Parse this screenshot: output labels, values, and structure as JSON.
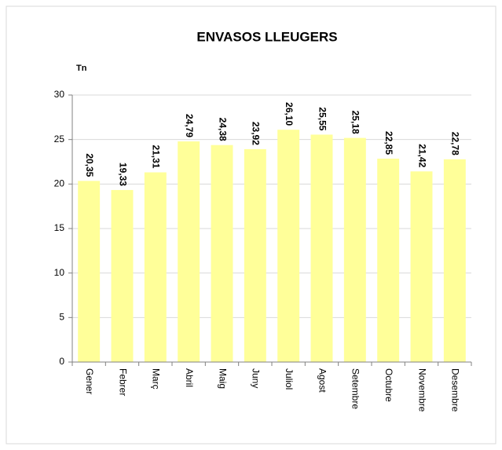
{
  "chart_data": {
    "type": "bar",
    "title": "ENVASOS LLEUGERS",
    "y_label": "Tn",
    "categories": [
      "Gener",
      "Febrer",
      "Març",
      "Abril",
      "Maig",
      "Juny",
      "Juliol",
      "Agost",
      "Setembre",
      "Octubre",
      "Novembre",
      "Desembre"
    ],
    "values": [
      20.35,
      19.33,
      21.31,
      24.79,
      24.38,
      23.92,
      26.1,
      25.55,
      25.18,
      22.85,
      21.42,
      22.78
    ],
    "value_labels": [
      "20,35",
      "19,33",
      "21,31",
      "24,79",
      "24,38",
      "23,92",
      "26,10",
      "25,55",
      "25,18",
      "22,85",
      "21,42",
      "22,78"
    ],
    "color": "#ffff99",
    "ylim": [
      0,
      30
    ],
    "yticks": [
      0,
      5,
      10,
      15,
      20,
      25,
      30
    ],
    "grid": true
  }
}
